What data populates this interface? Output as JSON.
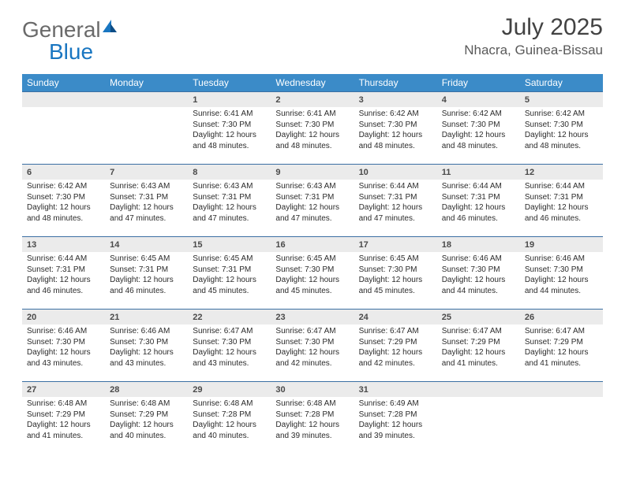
{
  "brand": {
    "part1": "General",
    "part2": "Blue"
  },
  "title": {
    "month": "July 2025",
    "location": "Nhacra, Guinea-Bissau"
  },
  "colors": {
    "header_bg": "#3b8bc8",
    "header_text": "#ffffff",
    "daynum_bg": "#ebebeb",
    "daynum_border": "#3b6fa3",
    "text": "#2b2b2b",
    "title_text": "#424242",
    "logo_gray": "#6a6a6a",
    "logo_blue": "#1976c1"
  },
  "weekdays": [
    "Sunday",
    "Monday",
    "Tuesday",
    "Wednesday",
    "Thursday",
    "Friday",
    "Saturday"
  ],
  "weeks": [
    {
      "nums": [
        "",
        "",
        "1",
        "2",
        "3",
        "4",
        "5"
      ],
      "cells": [
        null,
        null,
        {
          "sunrise": "Sunrise: 6:41 AM",
          "sunset": "Sunset: 7:30 PM",
          "day1": "Daylight: 12 hours",
          "day2": "and 48 minutes."
        },
        {
          "sunrise": "Sunrise: 6:41 AM",
          "sunset": "Sunset: 7:30 PM",
          "day1": "Daylight: 12 hours",
          "day2": "and 48 minutes."
        },
        {
          "sunrise": "Sunrise: 6:42 AM",
          "sunset": "Sunset: 7:30 PM",
          "day1": "Daylight: 12 hours",
          "day2": "and 48 minutes."
        },
        {
          "sunrise": "Sunrise: 6:42 AM",
          "sunset": "Sunset: 7:30 PM",
          "day1": "Daylight: 12 hours",
          "day2": "and 48 minutes."
        },
        {
          "sunrise": "Sunrise: 6:42 AM",
          "sunset": "Sunset: 7:30 PM",
          "day1": "Daylight: 12 hours",
          "day2": "and 48 minutes."
        }
      ]
    },
    {
      "nums": [
        "6",
        "7",
        "8",
        "9",
        "10",
        "11",
        "12"
      ],
      "cells": [
        {
          "sunrise": "Sunrise: 6:42 AM",
          "sunset": "Sunset: 7:30 PM",
          "day1": "Daylight: 12 hours",
          "day2": "and 48 minutes."
        },
        {
          "sunrise": "Sunrise: 6:43 AM",
          "sunset": "Sunset: 7:31 PM",
          "day1": "Daylight: 12 hours",
          "day2": "and 47 minutes."
        },
        {
          "sunrise": "Sunrise: 6:43 AM",
          "sunset": "Sunset: 7:31 PM",
          "day1": "Daylight: 12 hours",
          "day2": "and 47 minutes."
        },
        {
          "sunrise": "Sunrise: 6:43 AM",
          "sunset": "Sunset: 7:31 PM",
          "day1": "Daylight: 12 hours",
          "day2": "and 47 minutes."
        },
        {
          "sunrise": "Sunrise: 6:44 AM",
          "sunset": "Sunset: 7:31 PM",
          "day1": "Daylight: 12 hours",
          "day2": "and 47 minutes."
        },
        {
          "sunrise": "Sunrise: 6:44 AM",
          "sunset": "Sunset: 7:31 PM",
          "day1": "Daylight: 12 hours",
          "day2": "and 46 minutes."
        },
        {
          "sunrise": "Sunrise: 6:44 AM",
          "sunset": "Sunset: 7:31 PM",
          "day1": "Daylight: 12 hours",
          "day2": "and 46 minutes."
        }
      ]
    },
    {
      "nums": [
        "13",
        "14",
        "15",
        "16",
        "17",
        "18",
        "19"
      ],
      "cells": [
        {
          "sunrise": "Sunrise: 6:44 AM",
          "sunset": "Sunset: 7:31 PM",
          "day1": "Daylight: 12 hours",
          "day2": "and 46 minutes."
        },
        {
          "sunrise": "Sunrise: 6:45 AM",
          "sunset": "Sunset: 7:31 PM",
          "day1": "Daylight: 12 hours",
          "day2": "and 46 minutes."
        },
        {
          "sunrise": "Sunrise: 6:45 AM",
          "sunset": "Sunset: 7:31 PM",
          "day1": "Daylight: 12 hours",
          "day2": "and 45 minutes."
        },
        {
          "sunrise": "Sunrise: 6:45 AM",
          "sunset": "Sunset: 7:30 PM",
          "day1": "Daylight: 12 hours",
          "day2": "and 45 minutes."
        },
        {
          "sunrise": "Sunrise: 6:45 AM",
          "sunset": "Sunset: 7:30 PM",
          "day1": "Daylight: 12 hours",
          "day2": "and 45 minutes."
        },
        {
          "sunrise": "Sunrise: 6:46 AM",
          "sunset": "Sunset: 7:30 PM",
          "day1": "Daylight: 12 hours",
          "day2": "and 44 minutes."
        },
        {
          "sunrise": "Sunrise: 6:46 AM",
          "sunset": "Sunset: 7:30 PM",
          "day1": "Daylight: 12 hours",
          "day2": "and 44 minutes."
        }
      ]
    },
    {
      "nums": [
        "20",
        "21",
        "22",
        "23",
        "24",
        "25",
        "26"
      ],
      "cells": [
        {
          "sunrise": "Sunrise: 6:46 AM",
          "sunset": "Sunset: 7:30 PM",
          "day1": "Daylight: 12 hours",
          "day2": "and 43 minutes."
        },
        {
          "sunrise": "Sunrise: 6:46 AM",
          "sunset": "Sunset: 7:30 PM",
          "day1": "Daylight: 12 hours",
          "day2": "and 43 minutes."
        },
        {
          "sunrise": "Sunrise: 6:47 AM",
          "sunset": "Sunset: 7:30 PM",
          "day1": "Daylight: 12 hours",
          "day2": "and 43 minutes."
        },
        {
          "sunrise": "Sunrise: 6:47 AM",
          "sunset": "Sunset: 7:30 PM",
          "day1": "Daylight: 12 hours",
          "day2": "and 42 minutes."
        },
        {
          "sunrise": "Sunrise: 6:47 AM",
          "sunset": "Sunset: 7:29 PM",
          "day1": "Daylight: 12 hours",
          "day2": "and 42 minutes."
        },
        {
          "sunrise": "Sunrise: 6:47 AM",
          "sunset": "Sunset: 7:29 PM",
          "day1": "Daylight: 12 hours",
          "day2": "and 41 minutes."
        },
        {
          "sunrise": "Sunrise: 6:47 AM",
          "sunset": "Sunset: 7:29 PM",
          "day1": "Daylight: 12 hours",
          "day2": "and 41 minutes."
        }
      ]
    },
    {
      "nums": [
        "27",
        "28",
        "29",
        "30",
        "31",
        "",
        ""
      ],
      "cells": [
        {
          "sunrise": "Sunrise: 6:48 AM",
          "sunset": "Sunset: 7:29 PM",
          "day1": "Daylight: 12 hours",
          "day2": "and 41 minutes."
        },
        {
          "sunrise": "Sunrise: 6:48 AM",
          "sunset": "Sunset: 7:29 PM",
          "day1": "Daylight: 12 hours",
          "day2": "and 40 minutes."
        },
        {
          "sunrise": "Sunrise: 6:48 AM",
          "sunset": "Sunset: 7:28 PM",
          "day1": "Daylight: 12 hours",
          "day2": "and 40 minutes."
        },
        {
          "sunrise": "Sunrise: 6:48 AM",
          "sunset": "Sunset: 7:28 PM",
          "day1": "Daylight: 12 hours",
          "day2": "and 39 minutes."
        },
        {
          "sunrise": "Sunrise: 6:49 AM",
          "sunset": "Sunset: 7:28 PM",
          "day1": "Daylight: 12 hours",
          "day2": "and 39 minutes."
        },
        null,
        null
      ]
    }
  ]
}
